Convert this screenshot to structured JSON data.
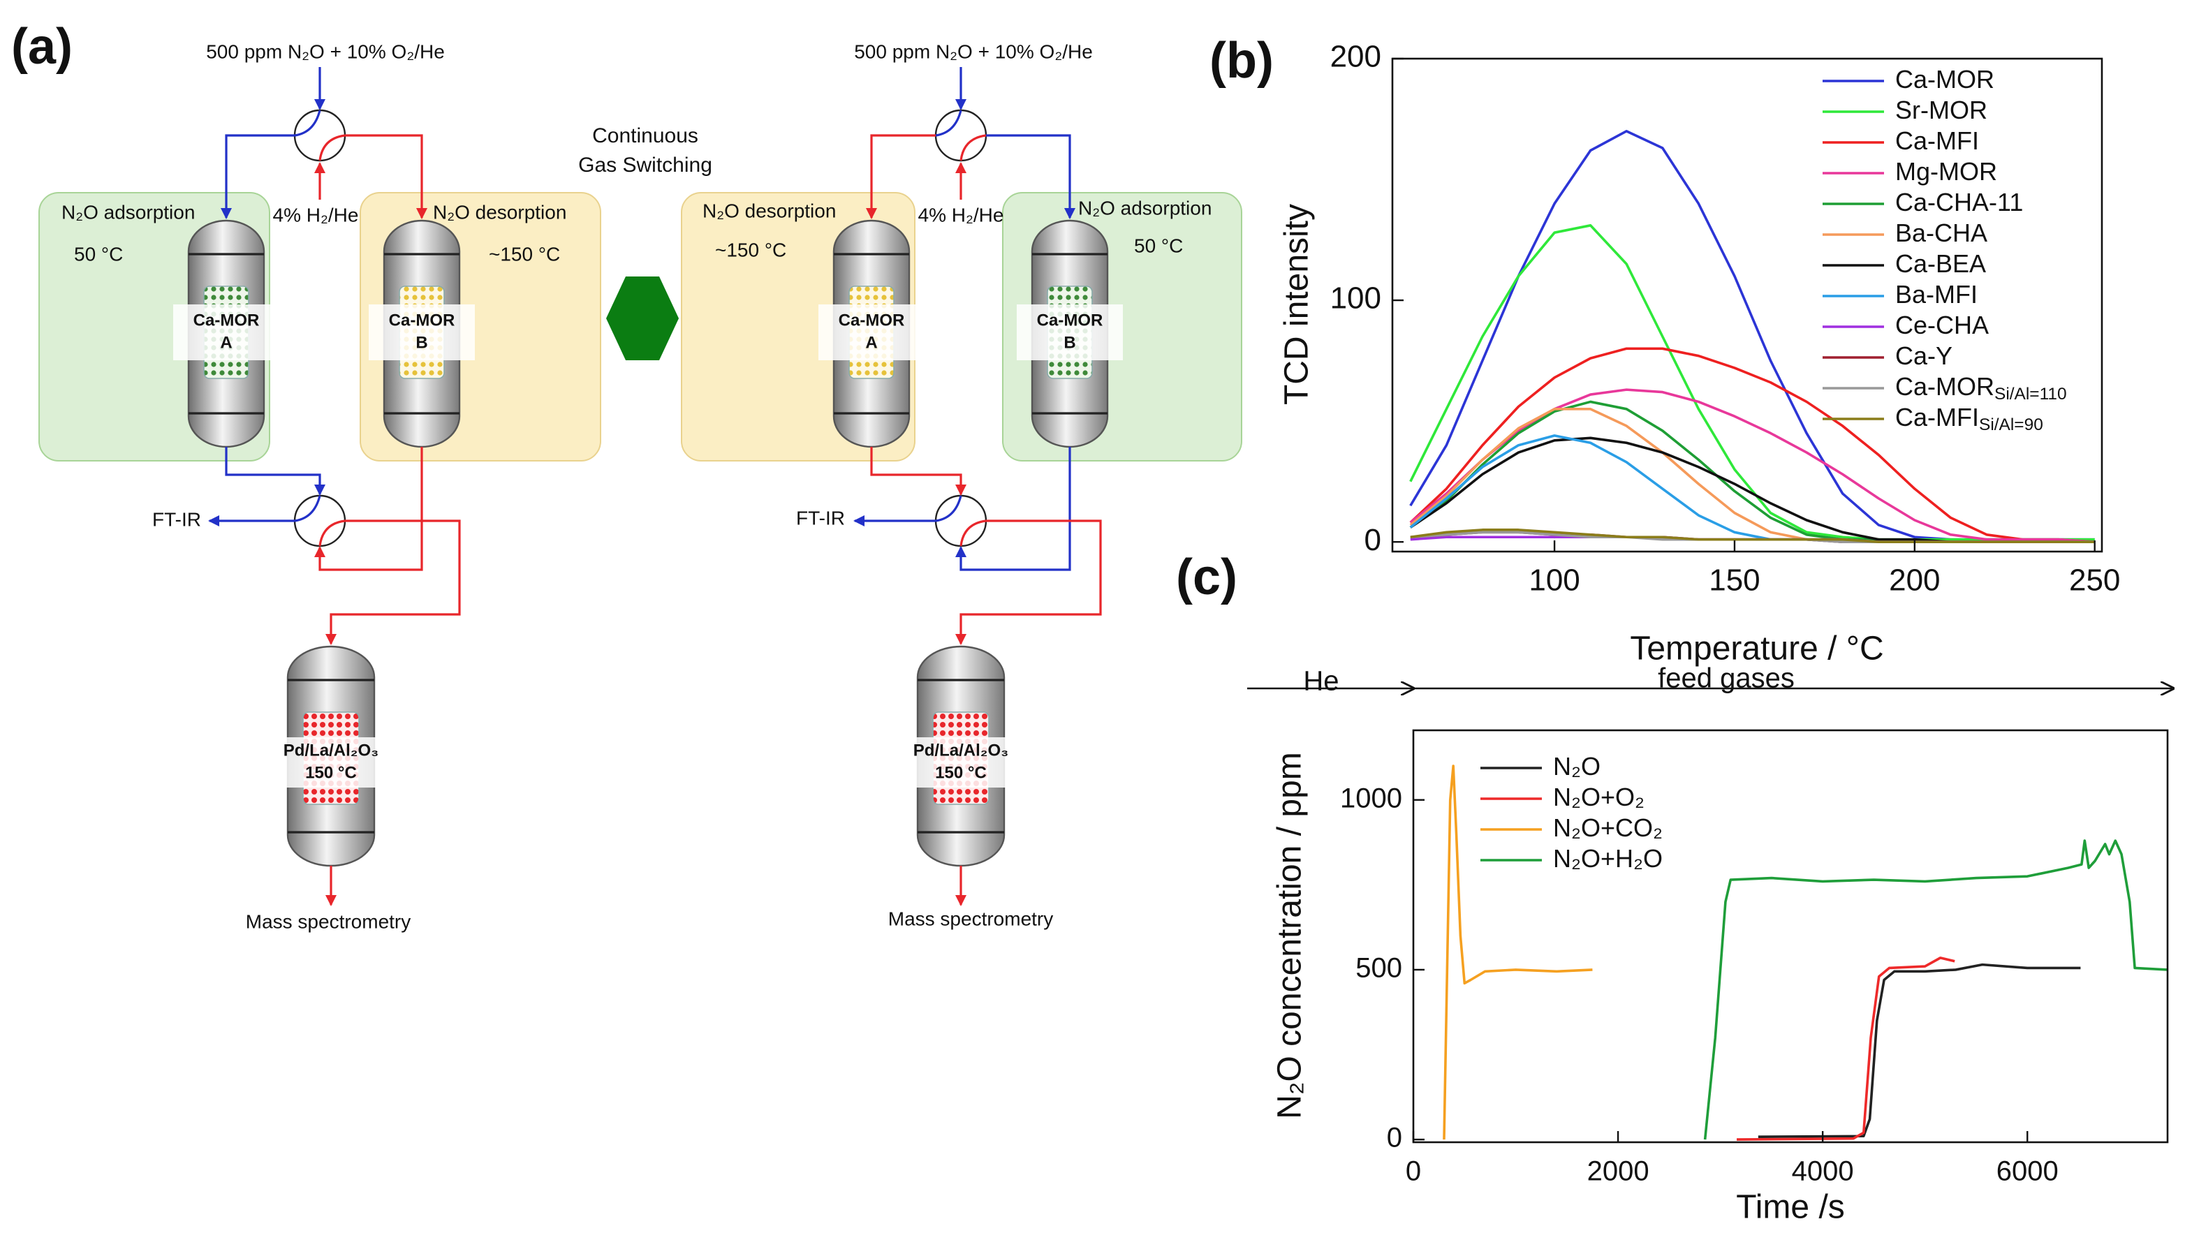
{
  "diagram": {
    "panel_label": "(a)",
    "switch_label": [
      "Continuous",
      "Gas Switching"
    ],
    "left": {
      "feed": "500 ppm N₂O + 10% O₂/He",
      "reductant": "4% H₂/He",
      "adsorption": {
        "title": "N₂O adsorption",
        "temperature": "50 °C"
      },
      "desorption": {
        "title": "N₂O desorption",
        "temperature": "~150 °C"
      },
      "bed_a": [
        "Ca-MOR",
        "A"
      ],
      "bed_b": [
        "Ca-MOR",
        "B"
      ],
      "detector_ir": "FT-IR",
      "catalyst": [
        "Pd/La/Al₂O₃",
        "150 °C"
      ],
      "detector_ms": "Mass spectrometry"
    },
    "right": {
      "feed": "500 ppm N₂O + 10% O₂/He",
      "reductant": "4% H₂/He",
      "adsorption": {
        "title": "N₂O adsorption",
        "temperature": "50 °C"
      },
      "desorption": {
        "title": "N₂O desorption",
        "temperature": "~150 °C"
      },
      "bed_a": [
        "Ca-MOR",
        "A"
      ],
      "bed_b": [
        "Ca-MOR",
        "B"
      ],
      "detector_ir": "FT-IR",
      "catalyst": [
        "Pd/La/Al₂O₃",
        "150 °C"
      ],
      "detector_ms": "Mass spectrometry"
    }
  },
  "chart_data": [
    {
      "type": "line",
      "panel_label": "(b)",
      "x_label": "Temperature / °C",
      "y_label": "TCD intensity",
      "xlim": [
        55,
        252
      ],
      "ylim": [
        -4,
        200
      ],
      "xticks": [
        100,
        150,
        200,
        250
      ],
      "yticks": [
        0,
        100,
        200
      ],
      "legend": "upper right",
      "x": [
        60,
        70,
        80,
        90,
        100,
        110,
        120,
        130,
        140,
        150,
        160,
        170,
        180,
        190,
        200,
        210,
        220,
        230,
        240,
        250
      ],
      "series": [
        {
          "name": "Ca-MOR",
          "color": "#2c35d6",
          "values": [
            15,
            40,
            75,
            110,
            140,
            162,
            170,
            163,
            140,
            110,
            75,
            45,
            20,
            7,
            2,
            1,
            1,
            1,
            1,
            1
          ]
        },
        {
          "name": "Sr-MOR",
          "color": "#2fe83a",
          "values": [
            25,
            55,
            85,
            110,
            128,
            131,
            115,
            85,
            55,
            30,
            12,
            4,
            2,
            1,
            1,
            1,
            1,
            1,
            1,
            1
          ]
        },
        {
          "name": "Ca-MFI",
          "color": "#ee2020",
          "values": [
            8,
            22,
            40,
            56,
            68,
            76,
            80,
            80,
            77,
            72,
            66,
            58,
            48,
            36,
            22,
            10,
            3,
            1,
            1,
            0
          ]
        },
        {
          "name": "Mg-MOR",
          "color": "#e8389a",
          "values": [
            8,
            20,
            34,
            46,
            55,
            61,
            63,
            62,
            58,
            52,
            45,
            37,
            28,
            18,
            9,
            3,
            1,
            1,
            1,
            0
          ]
        },
        {
          "name": "Ca-CHA-11",
          "color": "#1e9e35",
          "values": [
            6,
            17,
            32,
            45,
            54,
            58,
            55,
            46,
            34,
            21,
            10,
            3,
            1,
            1,
            0,
            0,
            0,
            0,
            0,
            0
          ]
        },
        {
          "name": "Ba-CHA",
          "color": "#f59a5a",
          "values": [
            7,
            19,
            34,
            47,
            55,
            55,
            48,
            37,
            24,
            12,
            4,
            1,
            1,
            0,
            0,
            0,
            0,
            0,
            0,
            0
          ]
        },
        {
          "name": "Ca-BEA",
          "color": "#111111",
          "values": [
            6,
            16,
            28,
            37,
            42,
            43,
            41,
            37,
            31,
            24,
            16,
            9,
            4,
            1,
            1,
            0,
            0,
            0,
            0,
            0
          ]
        },
        {
          "name": "Ba-MFI",
          "color": "#2a9ee6",
          "values": [
            6,
            18,
            31,
            40,
            44,
            41,
            33,
            22,
            11,
            4,
            1,
            1,
            0,
            0,
            0,
            0,
            0,
            0,
            0,
            0
          ]
        },
        {
          "name": "Ce-CHA",
          "color": "#a030e0",
          "values": [
            1,
            2,
            2,
            2,
            2,
            2,
            2,
            2,
            1,
            1,
            1,
            1,
            1,
            0,
            0,
            0,
            0,
            0,
            0,
            0
          ]
        },
        {
          "name": "Ca-Y",
          "color": "#a02030",
          "values": [
            2,
            3,
            4,
            4,
            3,
            3,
            2,
            2,
            1,
            1,
            1,
            1,
            0,
            0,
            0,
            0,
            0,
            0,
            0,
            0
          ]
        },
        {
          "name": "Ca-MOR",
          "subscript": "Si/Al=110",
          "color": "#999999",
          "values": [
            2,
            3,
            4,
            4,
            3,
            2,
            2,
            1,
            1,
            1,
            1,
            1,
            0,
            0,
            0,
            0,
            0,
            0,
            0,
            0
          ]
        },
        {
          "name": "Ca-MFI",
          "subscript": "Si/Al=90",
          "color": "#8b7d1a",
          "values": [
            2,
            4,
            5,
            5,
            4,
            3,
            2,
            2,
            1,
            1,
            1,
            1,
            1,
            0,
            0,
            0,
            0,
            0,
            0,
            0
          ]
        }
      ]
    },
    {
      "type": "line",
      "panel_label": "(c)",
      "x_label": "Time /s",
      "y_label": "N₂O concentration / ppm",
      "annotations": [
        "He",
        "feed gases"
      ],
      "xlim": [
        0,
        7370
      ],
      "ylim": [
        -8,
        1205
      ],
      "xticks": [
        0,
        2000,
        4000,
        6000
      ],
      "yticks": [
        0,
        500,
        1000
      ],
      "legend": "upper left",
      "series": [
        {
          "name": "N₂O",
          "color": "#222222",
          "x": [
            3370,
            4400,
            4460,
            4530,
            4600,
            4700,
            5000,
            5300,
            5560,
            6000,
            6520
          ],
          "values": [
            8,
            10,
            60,
            350,
            470,
            495,
            495,
            500,
            515,
            505,
            505
          ]
        },
        {
          "name": "N₂O+O₂",
          "color": "#ee2a2a",
          "x": [
            3160,
            4300,
            4400,
            4470,
            4550,
            4650,
            5000,
            5150,
            5290
          ],
          "values": [
            0,
            3,
            20,
            300,
            480,
            505,
            510,
            535,
            525
          ]
        },
        {
          "name": "N₂O+CO₂",
          "color": "#f5a020",
          "x": [
            300,
            330,
            360,
            390,
            420,
            460,
            500,
            560,
            700,
            1000,
            1400,
            1750
          ],
          "values": [
            0,
            500,
            1000,
            1100,
            900,
            600,
            460,
            470,
            495,
            500,
            495,
            500
          ]
        },
        {
          "name": "N₂O+H₂O",
          "color": "#1f9e3a",
          "x": [
            2850,
            2950,
            3050,
            3100,
            3500,
            4000,
            4500,
            5000,
            5500,
            6000,
            6400,
            6530,
            6560,
            6600,
            6660,
            6760,
            6800,
            6860,
            6920,
            7000,
            7050,
            7370
          ],
          "values": [
            0,
            300,
            700,
            765,
            770,
            760,
            765,
            760,
            770,
            775,
            800,
            810,
            880,
            800,
            820,
            870,
            840,
            880,
            840,
            700,
            505,
            500
          ]
        }
      ]
    }
  ]
}
